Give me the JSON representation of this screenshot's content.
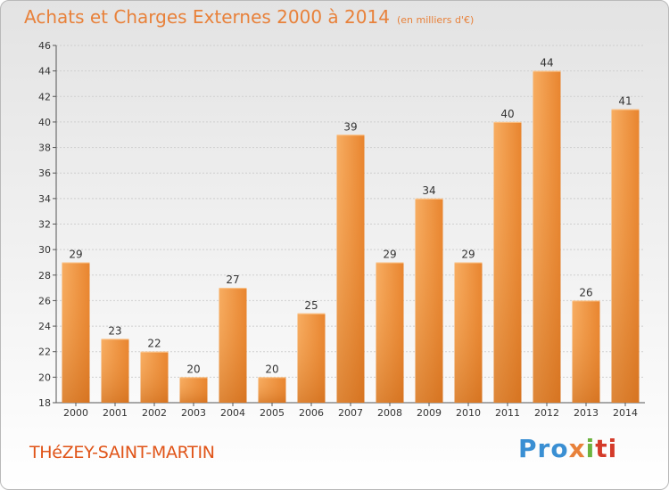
{
  "title": "Achats et Charges Externes 2000 à 2014",
  "subtitle": "(en milliers d'€)",
  "commune": "THéZEY-SAINT-MARTIN",
  "logo": {
    "p1": "Pro",
    "p2": "x",
    "p3": "i",
    "p4": "ti"
  },
  "colors": {
    "bar": "#f29a45",
    "bar_dark": "#d9751f",
    "title": "#e8813a",
    "commune": "#e05418"
  },
  "chart_data": {
    "type": "bar",
    "categories": [
      "2000",
      "2001",
      "2002",
      "2003",
      "2004",
      "2005",
      "2006",
      "2007",
      "2008",
      "2009",
      "2010",
      "2011",
      "2012",
      "2013",
      "2014"
    ],
    "values": [
      29,
      23,
      22,
      20,
      27,
      20,
      25,
      39,
      29,
      34,
      29,
      40,
      44,
      26,
      41
    ],
    "ylim": [
      18,
      46
    ],
    "yticks": [
      18,
      20,
      22,
      24,
      26,
      28,
      30,
      32,
      34,
      36,
      38,
      40,
      42,
      44,
      46
    ],
    "grid": true,
    "title": "Achats et Charges Externes 2000 à 2014",
    "subtitle": "(en milliers d'€)"
  }
}
